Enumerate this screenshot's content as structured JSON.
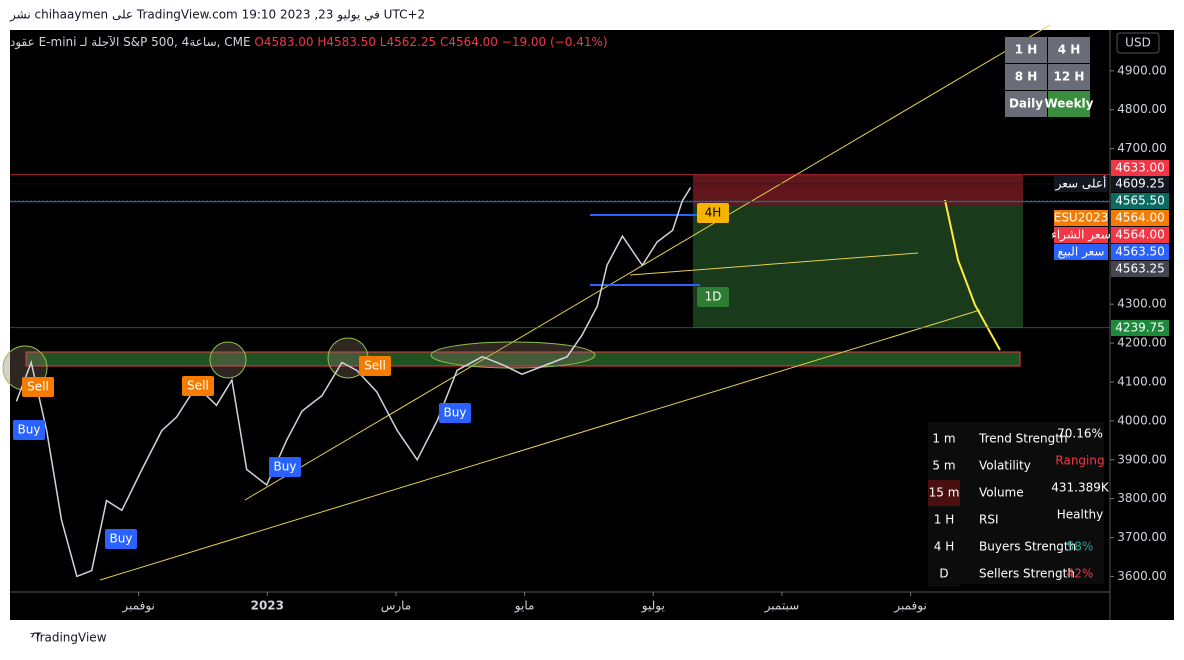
{
  "header": {
    "published": "نشر chihaaymen على TradingView.com في يوليو 23, 2023 19:10 UTC+2",
    "symbol": "عقود E-mini الآجلة لـ S&P 500, 4ساعة, CME",
    "open": "O4583.00",
    "high": "H4583.50",
    "low": "L4562.25",
    "close": "C4564.00",
    "change": "−19.00 (−0.41%)"
  },
  "timeframes": [
    "1 H",
    "4 H",
    "8 H",
    "12 H",
    "Daily",
    "Weekly"
  ],
  "currency": "USD",
  "chart_data": {
    "type": "line",
    "color": "#d1d4dc",
    "x": [
      -1.9,
      -1.67,
      -1.43,
      -1.2,
      -0.96,
      -0.73,
      -0.5,
      -0.26,
      0.05,
      0.36,
      0.59,
      0.9,
      1.21,
      1.45,
      1.68,
      1.99,
      2.3,
      2.54,
      2.85,
      3.16,
      3.39,
      3.7,
      4.02,
      4.33,
      4.64,
      4.95,
      5.34,
      5.65,
      5.96,
      6.35,
      6.66,
      6.89,
      7.13,
      7.28,
      7.52,
      7.83,
      8.06,
      8.3,
      8.45,
      8.58
    ],
    "values": [
      4050,
      4150,
      3975,
      3745,
      3600,
      3615,
      3795,
      3770,
      3875,
      3975,
      4010,
      4090,
      4040,
      4105,
      3875,
      3835,
      3950,
      4025,
      4065,
      4150,
      4130,
      4075,
      3975,
      3900,
      4000,
      4130,
      4165,
      4145,
      4120,
      4145,
      4165,
      4220,
      4295,
      4400,
      4475,
      4400,
      4460,
      4490,
      4565,
      4600
    ],
    "xlim": [
      -2,
      15.1
    ],
    "ylim": [
      3560,
      5005
    ],
    "xticks": [
      {
        "value": 0,
        "label": "نوفمبر"
      },
      {
        "value": 2,
        "label": "2023"
      },
      {
        "value": 4,
        "label": "مارس"
      },
      {
        "value": 6,
        "label": "مايو"
      },
      {
        "value": 8,
        "label": "يوليو"
      },
      {
        "value": 10,
        "label": "سبتمبر"
      },
      {
        "value": 12,
        "label": "نوفمبر"
      }
    ],
    "yticks": [
      {
        "value": 4900,
        "label": "4900.00"
      },
      {
        "value": 4800,
        "label": "4800.00"
      },
      {
        "value": 4700,
        "label": "4700.00"
      },
      {
        "value": 4300,
        "label": "4300.00"
      },
      {
        "value": 4200,
        "label": "4200.00"
      },
      {
        "value": 4100,
        "label": "4100.00"
      },
      {
        "value": 4000,
        "label": "4000.00"
      },
      {
        "value": 3900,
        "label": "3900.00"
      },
      {
        "value": 3800,
        "label": "3800.00"
      },
      {
        "value": 3700,
        "label": "3700.00"
      },
      {
        "value": 3600,
        "label": "3600.00"
      }
    ],
    "price_labels": [
      {
        "value": 4633,
        "label": "4633.00",
        "color": "#f23645"
      },
      {
        "value": 4609.25,
        "label": "4609.25",
        "color": "#131722",
        "name": "أعلى سعر"
      },
      {
        "value": 4565.5,
        "label": "4565.50",
        "color": "#0b6b63"
      },
      {
        "value": 4564,
        "label": "4564.00",
        "color": "#f57c00",
        "name": "ESU2023"
      },
      {
        "value": 4564,
        "label": "4564.00",
        "color": "#f23645",
        "name": "سعر الشراء"
      },
      {
        "value": 4563.5,
        "label": "4563.50",
        "color": "#2962ff",
        "name": "سعر البيع"
      },
      {
        "value": 4563.25,
        "label": "4563.25",
        "color": "#434651"
      },
      {
        "value": 4239.75,
        "label": "4239.75",
        "color": "#1b8a3a"
      }
    ],
    "signals": [
      "Sell",
      "Sell",
      "Sell",
      "Buy",
      "Buy",
      "Buy",
      "Buy",
      "4H",
      "1D"
    ]
  },
  "dashboard": [
    [
      "1 m",
      "Trend Strength",
      "70.16%"
    ],
    [
      "5 m",
      "Volatility",
      "Ranging"
    ],
    [
      "15 m",
      "Volume",
      "431.389K"
    ],
    [
      "1 H",
      "RSI",
      "Healthy"
    ],
    [
      "4 H",
      "Buyers Strength",
      "58%"
    ],
    [
      "D",
      "Sellers Strength",
      "42%"
    ]
  ],
  "footer": "TradingView"
}
